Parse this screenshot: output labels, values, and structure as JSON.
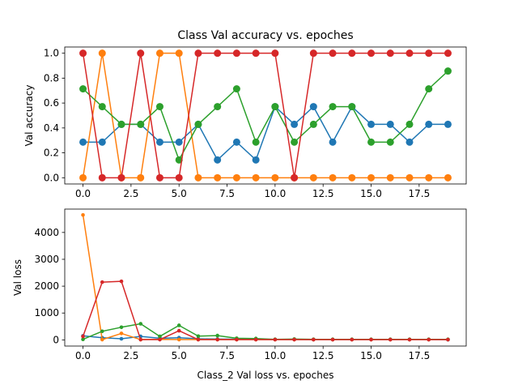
{
  "chart_data": [
    {
      "type": "line",
      "title": "Class Val accuracy vs. epoches",
      "xlabel": "",
      "ylabel": "Val accuracy",
      "xlim": [
        -0.95,
        19.95
      ],
      "ylim": [
        -0.05,
        1.05
      ],
      "x_ticks": [
        0,
        2.5,
        5,
        7.5,
        10,
        12.5,
        15,
        17.5
      ],
      "x_tick_labels": [
        "0.0",
        "2.5",
        "5.0",
        "7.5",
        "10.0",
        "12.5",
        "15.0",
        "17.5"
      ],
      "y_ticks": [
        0,
        0.2,
        0.4,
        0.6,
        0.8,
        1.0
      ],
      "y_tick_labels": [
        "0.0",
        "0.2",
        "0.4",
        "0.6",
        "0.8",
        "1.0"
      ],
      "grid": false,
      "x": [
        0,
        1,
        2,
        3,
        4,
        5,
        6,
        7,
        8,
        9,
        10,
        11,
        12,
        13,
        14,
        15,
        16,
        17,
        18,
        19
      ],
      "series": [
        {
          "color": "#1f77b4",
          "marker": "large",
          "values": [
            0.286,
            0.286,
            0.429,
            0.429,
            0.286,
            0.286,
            0.429,
            0.143,
            0.286,
            0.143,
            0.571,
            0.429,
            0.571,
            0.286,
            0.571,
            0.429,
            0.429,
            0.286,
            0.429,
            0.429
          ]
        },
        {
          "color": "#ff7f0e",
          "marker": "large",
          "values": [
            0,
            1,
            0,
            0,
            1,
            1,
            0,
            0,
            0,
            0,
            0,
            0,
            0,
            0,
            0,
            0,
            0,
            0,
            0,
            0
          ]
        },
        {
          "color": "#2ca02c",
          "marker": "large",
          "values": [
            0.714,
            0.571,
            0.429,
            0.429,
            0.571,
            0.143,
            0.429,
            0.571,
            0.714,
            0.286,
            0.571,
            0.286,
            0.429,
            0.571,
            0.571,
            0.286,
            0.286,
            0.429,
            0.714,
            0.857
          ]
        },
        {
          "color": "#d62728",
          "marker": "large",
          "values": [
            1,
            0,
            0,
            1,
            0,
            0,
            1,
            1,
            1,
            1,
            1,
            0,
            1,
            1,
            1,
            1,
            1,
            1,
            1,
            1
          ]
        }
      ]
    },
    {
      "type": "line",
      "title": "",
      "xlabel": "Class_2 Val loss vs. epoches",
      "ylabel": "Val loss",
      "xlim": [
        -0.95,
        19.95
      ],
      "ylim": [
        -230,
        4870
      ],
      "x_ticks": [
        0,
        2.5,
        5,
        7.5,
        10,
        12.5,
        15,
        17.5
      ],
      "x_tick_labels": [
        "0.0",
        "2.5",
        "5.0",
        "7.5",
        "10.0",
        "12.5",
        "15.0",
        "17.5"
      ],
      "y_ticks": [
        0,
        1000,
        2000,
        3000,
        4000
      ],
      "y_tick_labels": [
        "0",
        "1000",
        "2000",
        "3000",
        "4000"
      ],
      "grid": false,
      "x": [
        0,
        1,
        2,
        3,
        4,
        5,
        6,
        7,
        8,
        9,
        10,
        11,
        12,
        13,
        14,
        15,
        16,
        17,
        18,
        19
      ],
      "series": [
        {
          "color": "#1f77b4",
          "marker": "small",
          "values": [
            150,
            80,
            40,
            130,
            60,
            80,
            40,
            30,
            25,
            20,
            15,
            15,
            10,
            10,
            10,
            10,
            10,
            10,
            10,
            5
          ]
        },
        {
          "color": "#ff7f0e",
          "marker": "small",
          "values": [
            4650,
            10,
            240,
            10,
            20,
            10,
            10,
            10,
            10,
            10,
            10,
            10,
            10,
            10,
            10,
            10,
            10,
            10,
            10,
            10
          ]
        },
        {
          "color": "#2ca02c",
          "marker": "small",
          "values": [
            20,
            320,
            470,
            600,
            130,
            540,
            140,
            160,
            60,
            50,
            20,
            30,
            20,
            20,
            20,
            20,
            20,
            20,
            20,
            20
          ]
        },
        {
          "color": "#d62728",
          "marker": "small",
          "values": [
            130,
            2150,
            2180,
            10,
            10,
            340,
            10,
            10,
            10,
            10,
            10,
            10,
            10,
            10,
            10,
            10,
            10,
            10,
            10,
            10
          ]
        }
      ]
    }
  ]
}
